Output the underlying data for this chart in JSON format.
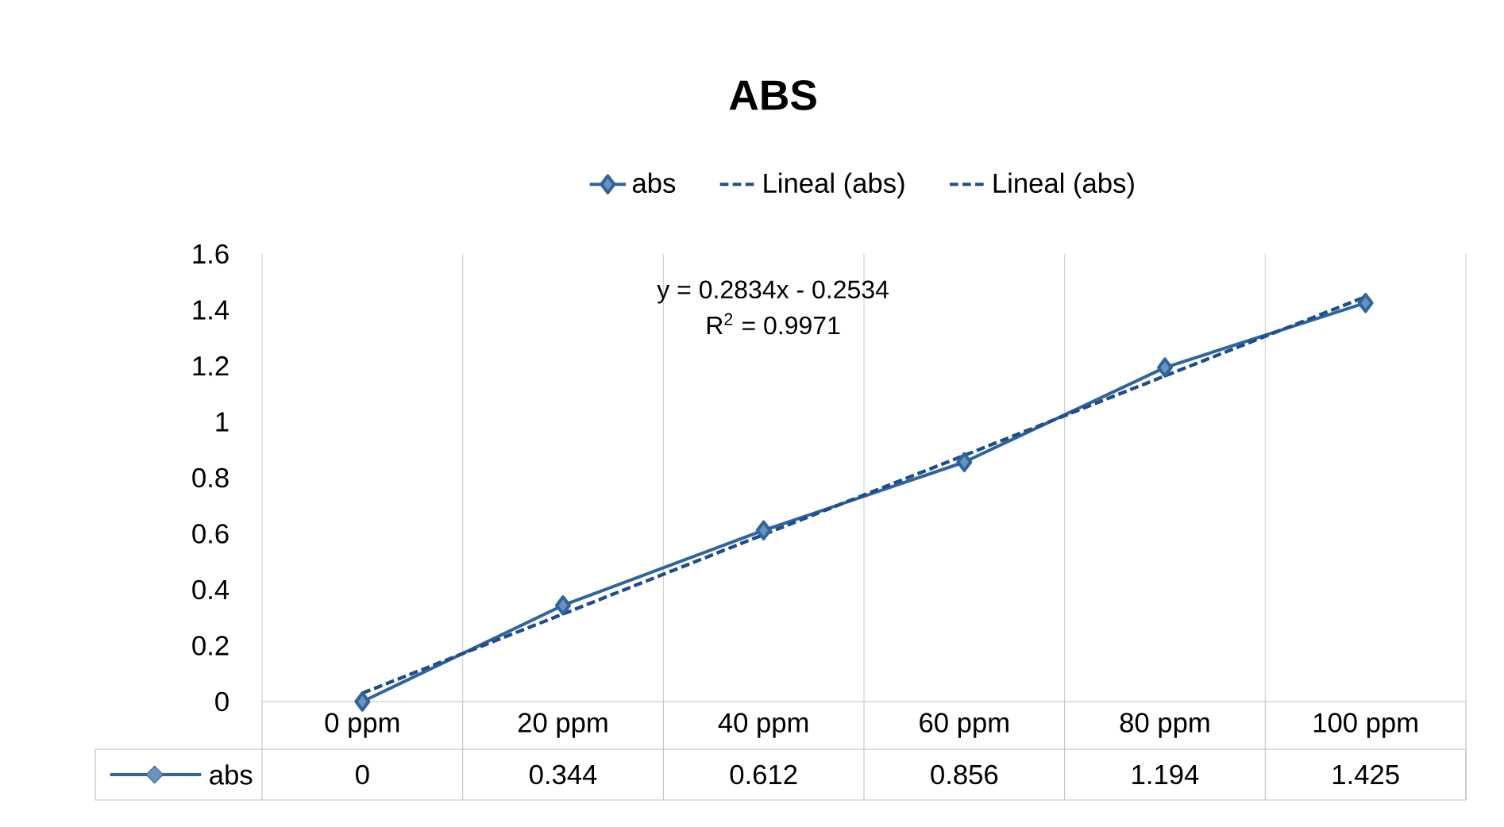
{
  "chart_data": {
    "type": "line",
    "title": "ABS",
    "categories": [
      "0  ppm",
      "20 ppm",
      "40 ppm",
      "60 ppm",
      "80 ppm",
      "100 ppm"
    ],
    "series": [
      {
        "name": "abs",
        "color": "#2f649c",
        "values": [
          0,
          0.344,
          0.612,
          0.856,
          1.194,
          1.425
        ],
        "value_labels": [
          "0",
          "0.344",
          "0.612",
          "0.856",
          "1.194",
          "1.425"
        ],
        "marker": "diamond",
        "line_style": "solid"
      },
      {
        "name": "Lineal (abs)",
        "color": "#1f4e8c",
        "values": [
          0.03,
          0.313,
          0.597,
          0.88,
          1.164,
          1.447
        ],
        "marker": "none",
        "line_style": "dashed"
      },
      {
        "name": "Lineal (abs)",
        "color": "#1f4e8c",
        "values": [
          0.03,
          0.313,
          0.597,
          0.88,
          1.164,
          1.447
        ],
        "marker": "none",
        "line_style": "dashed"
      }
    ],
    "ylim": [
      0,
      1.6
    ],
    "yticks": [
      0,
      0.2,
      0.4,
      0.6,
      0.8,
      1,
      1.2,
      1.4,
      1.6
    ],
    "grid": "x",
    "legend": "top",
    "annotations": [
      "y = 0.2834x - 0.2534",
      "R$^{2}$ = 0.9971"
    ]
  }
}
